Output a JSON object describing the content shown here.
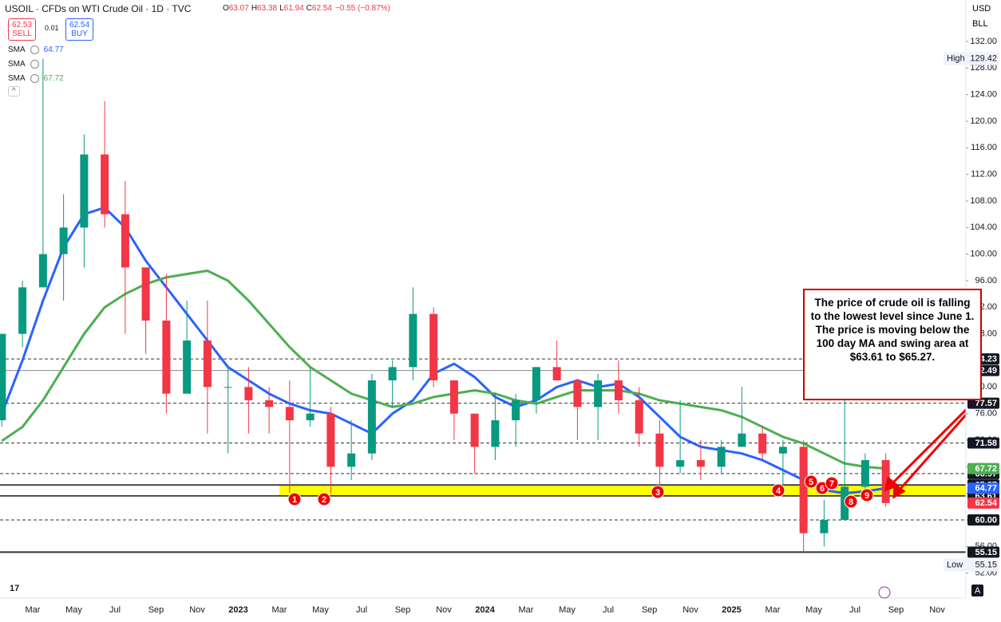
{
  "header": {
    "title": "USOIL · CFDs on WTI Crude Oil · 1D · TVC",
    "ohlc": [
      {
        "label": "O",
        "value": "63.07"
      },
      {
        "label": "H",
        "value": "63.38"
      },
      {
        "label": "L",
        "value": "61.94"
      },
      {
        "label": "C",
        "value": "62.54"
      }
    ],
    "change": "−0.55 (−0.87%)",
    "sell_price": "62.53",
    "sell_label": "SELL",
    "spread": "0.01",
    "buy_price": "62.54",
    "buy_label": "BUY",
    "currency": "USD",
    "unit": "BLL"
  },
  "chart_data": {
    "type": "candlestick",
    "x": [
      "2022-01",
      "2022-02",
      "2022-03",
      "2022-04",
      "2022-05",
      "2022-06",
      "2022-07",
      "2022-08",
      "2022-09",
      "2022-10",
      "2022-11",
      "2022-12",
      "2023-01",
      "2023-02",
      "2023-03",
      "2023-04",
      "2023-05",
      "2023-06",
      "2023-07",
      "2023-08",
      "2023-09",
      "2023-10",
      "2023-11",
      "2023-12",
      "2024-01",
      "2024-02",
      "2024-03",
      "2024-04",
      "2024-05",
      "2024-06",
      "2024-07",
      "2024-08",
      "2024-09",
      "2024-10",
      "2024-11",
      "2024-12",
      "2025-01",
      "2025-02",
      "2025-03",
      "2025-04",
      "2025-05",
      "2025-06",
      "2025-07",
      "2025-08"
    ],
    "open": [
      75,
      88,
      95,
      100,
      104,
      115,
      106,
      98,
      90,
      79,
      87,
      80,
      80,
      78,
      77,
      75,
      76,
      68,
      70,
      81,
      83,
      91,
      81,
      76,
      71,
      75,
      78,
      83,
      81,
      77,
      81,
      78,
      73,
      68,
      69,
      68,
      71,
      73,
      70,
      71,
      58,
      60,
      65,
      69
    ],
    "high": [
      88,
      96,
      129.42,
      109,
      118,
      123,
      111,
      98,
      97,
      93,
      93,
      83,
      83,
      80,
      81,
      83,
      77,
      75,
      82,
      84,
      95,
      92,
      81,
      76,
      79,
      79,
      83,
      87,
      81,
      82,
      84,
      80,
      75,
      78,
      72,
      72,
      80,
      74,
      72,
      72,
      63,
      78,
      70,
      70
    ],
    "low": [
      74,
      86,
      95,
      93,
      98,
      104,
      88,
      85,
      76,
      79,
      73,
      70,
      73,
      73,
      64,
      74,
      64,
      66,
      69,
      77,
      81,
      80,
      72,
      67,
      69,
      71,
      76,
      81,
      72,
      72,
      76,
      71,
      65,
      67,
      66,
      67,
      71,
      69,
      65,
      55.15,
      56,
      60,
      64,
      62
    ],
    "close": [
      88,
      95,
      100,
      104,
      115,
      106,
      98,
      90,
      79,
      87,
      80,
      80,
      78,
      77,
      75,
      76,
      68,
      70,
      81,
      83,
      91,
      81,
      76,
      71,
      75,
      78,
      83,
      81,
      77,
      81,
      78,
      73,
      68,
      69,
      68,
      71,
      73,
      70,
      71,
      58,
      60,
      65,
      69,
      62.54
    ],
    "up_color": "#089981",
    "down_color": "#f23645",
    "series": [
      {
        "name": "SMA",
        "color": "#2962ff",
        "values": [
          76,
          84,
          93,
          101,
          106,
          107,
          104,
          99,
          95,
          91,
          87,
          83,
          81,
          79,
          77.5,
          76.5,
          76,
          74.5,
          73,
          76,
          78,
          82,
          83.5,
          81.5,
          78.5,
          77,
          78,
          80,
          81,
          80,
          80.5,
          78.5,
          75.5,
          72.5,
          71,
          70.5,
          70,
          69,
          67.5,
          66,
          64.5,
          64,
          64.3,
          64.77
        ]
      },
      {
        "name": "SMA",
        "color": "#4caf50",
        "values": [
          71.9,
          74,
          78,
          83,
          88,
          92,
          94,
          95.5,
          96.5,
          97,
          97.5,
          96,
          93,
          89.5,
          86,
          83,
          81,
          79,
          78,
          77,
          77.5,
          78.5,
          79,
          79.5,
          79,
          78,
          77.5,
          78.5,
          79.5,
          79.5,
          79.5,
          79,
          78,
          77.5,
          77,
          76.5,
          75.5,
          74,
          72.5,
          71.5,
          70,
          68.5,
          68,
          67.72
        ]
      }
    ],
    "hidden_indicator": "SMA",
    "ylim": [
      48.24,
      138.24
    ],
    "yticks": [
      {
        "value": 132,
        "label": "132.00"
      },
      {
        "value": 128,
        "label": "128.00"
      },
      {
        "value": 124,
        "label": "124.00"
      },
      {
        "value": 120,
        "label": "120.00"
      },
      {
        "value": 116,
        "label": "116.00"
      },
      {
        "value": 112,
        "label": "112.00"
      },
      {
        "value": 108,
        "label": "108.00"
      },
      {
        "value": 104,
        "label": "104.00"
      },
      {
        "value": 100,
        "label": "100.00"
      },
      {
        "value": 96,
        "label": "96.00"
      },
      {
        "value": 92,
        "label": "92.00"
      },
      {
        "value": 88,
        "label": "88.00"
      },
      {
        "value": 84,
        "label": "84.00"
      },
      {
        "value": 80,
        "label": "80.00"
      },
      {
        "value": 76,
        "label": "76.00"
      },
      {
        "value": 72,
        "label": "72.00"
      },
      {
        "value": 68,
        "label": "68.00"
      },
      {
        "value": 64,
        "label": "64.00"
      },
      {
        "value": 60,
        "label": "60.00"
      },
      {
        "value": 56,
        "label": "56.00"
      },
      {
        "value": 52,
        "label": "52.00"
      }
    ],
    "xticks": [
      {
        "value": "2022-03",
        "label": "Mar"
      },
      {
        "value": "2022-05",
        "label": "May"
      },
      {
        "value": "2022-07",
        "label": "Jul"
      },
      {
        "value": "2022-09",
        "label": "Sep"
      },
      {
        "value": "2022-11",
        "label": "Nov"
      },
      {
        "value": "2023-01",
        "label": "2023"
      },
      {
        "value": "2023-03",
        "label": "Mar"
      },
      {
        "value": "2023-05",
        "label": "May"
      },
      {
        "value": "2023-07",
        "label": "Jul"
      },
      {
        "value": "2023-09",
        "label": "Sep"
      },
      {
        "value": "2023-11",
        "label": "Nov"
      },
      {
        "value": "2024-01",
        "label": "2024"
      },
      {
        "value": "2024-03",
        "label": "Mar"
      },
      {
        "value": "2024-05",
        "label": "May"
      },
      {
        "value": "2024-07",
        "label": "Jul"
      },
      {
        "value": "2024-09",
        "label": "Sep"
      },
      {
        "value": "2024-11",
        "label": "Nov"
      },
      {
        "value": "2025-01",
        "label": "2025"
      },
      {
        "value": "2025-03",
        "label": "Mar"
      },
      {
        "value": "2025-05",
        "label": "May"
      },
      {
        "value": "2025-07",
        "label": "Jul"
      },
      {
        "value": "2025-09",
        "label": "Sep"
      },
      {
        "value": "2025-11",
        "label": "Nov"
      }
    ],
    "levels": [
      {
        "value": 84.23,
        "style": "dashed"
      },
      {
        "value": 82.49,
        "style": "solid"
      },
      {
        "value": 77.57,
        "style": "dashed"
      },
      {
        "value": 71.58,
        "style": "dashed"
      },
      {
        "value": 66.97,
        "style": "dashed"
      },
      {
        "value": 60,
        "label": "60.00",
        "style": "dashed"
      },
      {
        "value": 55.15,
        "style": "thick"
      }
    ],
    "swing_area": [
      63.61,
      65.27
    ],
    "swing_color": "#ffff00",
    "high_label": "High",
    "low_label": "Low",
    "markers": [
      "1",
      "2",
      "3",
      "4",
      "5",
      "6",
      "7",
      "8",
      "9"
    ],
    "annotation": "The price of crude oil is falling to the lowest level since June 1. The price is moving below the 100 day MA and swing area at $63.61 to $65.27."
  }
}
